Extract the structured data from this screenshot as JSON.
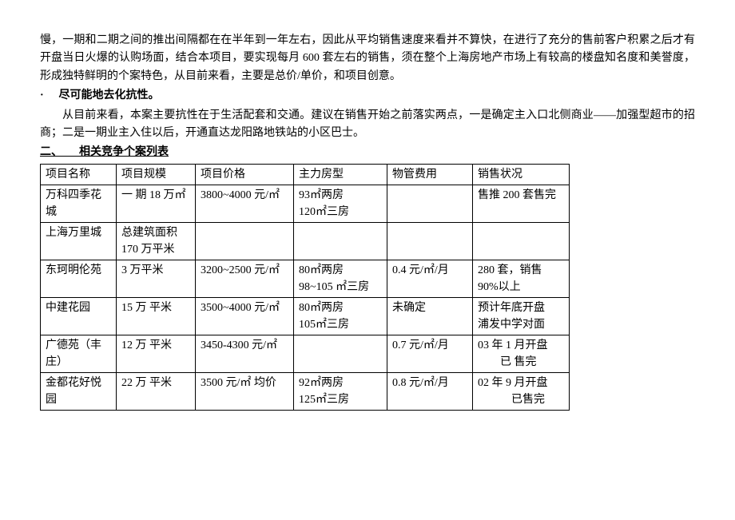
{
  "para1": "慢，一期和二期之间的推出间隔都在在半年到一年左右，因此从平均销售速度来看并不算快，在进行了充分的售前客户积累之后才有开盘当日火爆的认购场面，结合本项目，要实现每月 600 套左右的销售，须在整个上海房地产市场上有较高的楼盘知名度和美誉度，形成独特鲜明的个案特色，从目前来看，主要是总价/单价，和项目创意。",
  "bullet": {
    "mark": "·",
    "text": "尽可能地去化抗性。"
  },
  "para2": "从目前来看，本案主要抗性在于生活配套和交通。建议在销售开始之前落实两点，一是确定主入口北侧商业——加强型超市的招商；二是一期业主入住以后，开通直达龙阳路地铁站的小区巴士。",
  "section": "二、　　相关竞争个案列表",
  "table": {
    "headers": [
      "项目名称",
      "项目规模",
      "项目价格",
      "主力房型",
      "物管费用",
      "销售状况"
    ],
    "rows": [
      {
        "c0": "万科四季花城",
        "c1": "一 期 18 万㎡",
        "c2": "3800~4000 元/㎡",
        "c3": "93㎡两房\n120㎡三房",
        "c4": "",
        "c5": "售推 200 套售完"
      },
      {
        "c0": "上海万里城",
        "c1": "总建筑面积 170 万平米",
        "c2": "",
        "c3": "",
        "c4": "",
        "c5": ""
      },
      {
        "c0": "东珂明伦苑",
        "c1": "3 万平米",
        "c2": "3200~2500 元/㎡",
        "c3": "80㎡两房\n98~105 ㎡三房",
        "c4": "0.4 元/㎡/月",
        "c5": "280 套，销售 90%以上"
      },
      {
        "c0": "中建花园",
        "c1": "15 万 平米",
        "c2": "3500~4000 元/㎡",
        "c3": "80㎡两房\n105㎡三房",
        "c4": "未确定",
        "c5": "预计年底开盘\n浦发中学对面"
      },
      {
        "c0": "广德苑（丰庄）",
        "c1": "12 万 平米",
        "c2": "3450-4300 元/㎡",
        "c3": "",
        "c4": "0.7 元/㎡/月",
        "c5": "03 年 1 月开盘\n　　已 售完"
      },
      {
        "c0": "金都花好悦园",
        "c1": "22 万 平米",
        "c2": "3500 元/㎡ 均价",
        "c3": "92㎡两房\n125㎡三房",
        "c4": "0.8 元/㎡/月",
        "c5": "02 年 9 月开盘\n　　　已售完"
      }
    ]
  }
}
